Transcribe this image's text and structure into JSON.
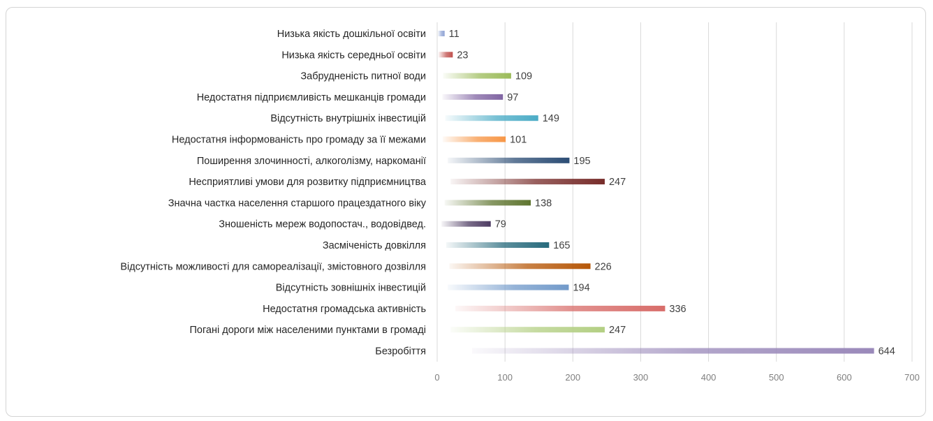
{
  "chart_data": {
    "type": "bar",
    "orientation": "horizontal",
    "title": "",
    "xlabel": "",
    "ylabel": "",
    "xlim": [
      0,
      700
    ],
    "grid": true,
    "legend": "none",
    "ticks": [
      "0",
      "100",
      "200",
      "300",
      "400",
      "500",
      "600",
      "700"
    ],
    "categories": [
      "Низька якість дошкільної освіти",
      "Низька якість середньої освіти",
      "Забрудненість питної води",
      "Недостатня підприємливість мешканців громади",
      "Відсутність внутрішніх інвестицій",
      "Недостатня інформованість про громаду за її межами",
      "Поширення злочинності, алкоголізму, наркоманії",
      "Несприятливі умови для розвитку підприємництва",
      "Значна частка населення старшого працездатного віку",
      "Зношеність мереж водопостач., водовідвед.",
      "Засміченість довкілля",
      "Відсутність можливості для самореалізації, змістовного дозвілля",
      "Відсутність зовнішніх інвестицій",
      "Недостатня громадська активність",
      "Погані дороги між населеними пунктами в громаді",
      "Безробіття"
    ],
    "values": [
      11,
      23,
      109,
      97,
      149,
      101,
      195,
      247,
      138,
      79,
      165,
      226,
      194,
      336,
      247,
      644
    ],
    "colors": [
      "#8fa3d4",
      "#c0504d",
      "#9bbb59",
      "#8064a2",
      "#4bacc6",
      "#f79646",
      "#2c4d75",
      "#772c2a",
      "#5f7530",
      "#4d3b62",
      "#276a7c",
      "#b65708",
      "#729aca",
      "#d86d6a",
      "#b3cf83",
      "#9a89ba"
    ]
  }
}
